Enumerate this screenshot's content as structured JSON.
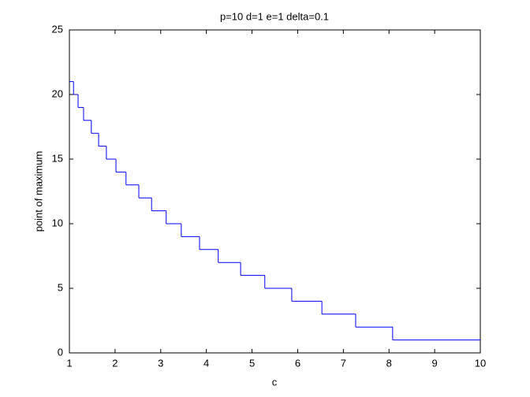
{
  "chart_data": {
    "type": "step",
    "title": "p=10 d=1 e=1 delta=0.1",
    "x_label": "c",
    "y_label": "point of maximum",
    "edges": [
      1,
      1.09,
      1.19,
      1.31,
      1.48,
      1.64,
      1.81,
      2.02,
      2.24,
      2.52,
      2.8,
      3.12,
      3.45,
      3.85,
      4.26,
      4.75,
      5.28,
      5.87,
      6.53,
      7.27,
      8.08,
      10
    ],
    "values": [
      21,
      20,
      19,
      18,
      17,
      16,
      15,
      14,
      13,
      12,
      11,
      10,
      9,
      8,
      7,
      6,
      5,
      4,
      3,
      2,
      1
    ],
    "color": "#0000ff",
    "xlim": [
      1,
      10
    ],
    "xticks": [
      1,
      2,
      3,
      4,
      5,
      6,
      7,
      8,
      9,
      10
    ],
    "ylim": [
      0,
      25
    ],
    "yticks": [
      0,
      5,
      10,
      15,
      20,
      25
    ]
  }
}
